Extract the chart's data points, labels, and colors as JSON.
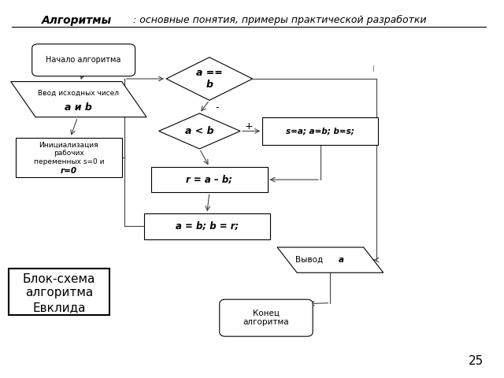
{
  "title_bold": "Алгоритмы",
  "title_rest": ": основные понятия, примеры практической разработки",
  "page_num": "25",
  "bg_color": "#ffffff",
  "lw": 0.8
}
